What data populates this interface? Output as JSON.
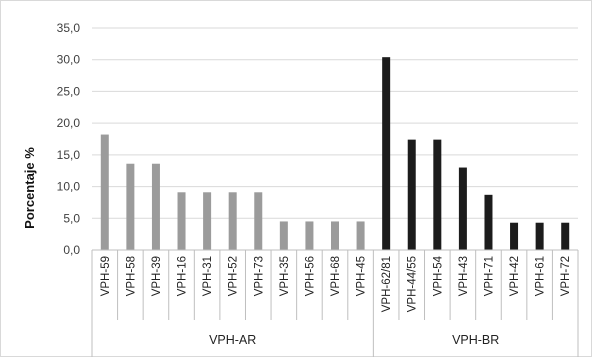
{
  "chart_data": {
    "type": "bar",
    "ylabel": "Porcentaje %",
    "xlabel": "",
    "ylim": [
      0,
      35
    ],
    "yticks": [
      "0,0",
      "5,0",
      "10,0",
      "15,0",
      "20,0",
      "25,0",
      "30,0",
      "35,0"
    ],
    "grid": true,
    "categories": [
      "VPH-59",
      "VPH-58",
      "VPH-39",
      "VPH-16",
      "VPH-31",
      "VPH-52",
      "VPH-73",
      "VPH-35",
      "VPH-56",
      "VPH-68",
      "VPH-45",
      "VPH-62/81",
      "VPH-44/55",
      "VPH-54",
      "VPH-43",
      "VPH-71",
      "VPH-42",
      "VPH-61",
      "VPH-72"
    ],
    "groups": [
      {
        "label": "VPH-AR",
        "categories": [
          "VPH-59",
          "VPH-58",
          "VPH-39",
          "VPH-16",
          "VPH-31",
          "VPH-52",
          "VPH-73",
          "VPH-35",
          "VPH-56",
          "VPH-68",
          "VPH-45"
        ],
        "values": [
          18.2,
          13.6,
          13.6,
          9.1,
          9.1,
          9.1,
          9.1,
          4.5,
          4.5,
          4.5,
          4.5
        ],
        "color": "#9b9b9b"
      },
      {
        "label": "VPH-BR",
        "categories": [
          "VPH-62/81",
          "VPH-44/55",
          "VPH-54",
          "VPH-43",
          "VPH-71",
          "VPH-42",
          "VPH-61",
          "VPH-72"
        ],
        "values": [
          30.4,
          17.4,
          17.4,
          13.0,
          8.7,
          4.3,
          4.3,
          4.3
        ],
        "color": "#1c1c1c"
      }
    ]
  }
}
